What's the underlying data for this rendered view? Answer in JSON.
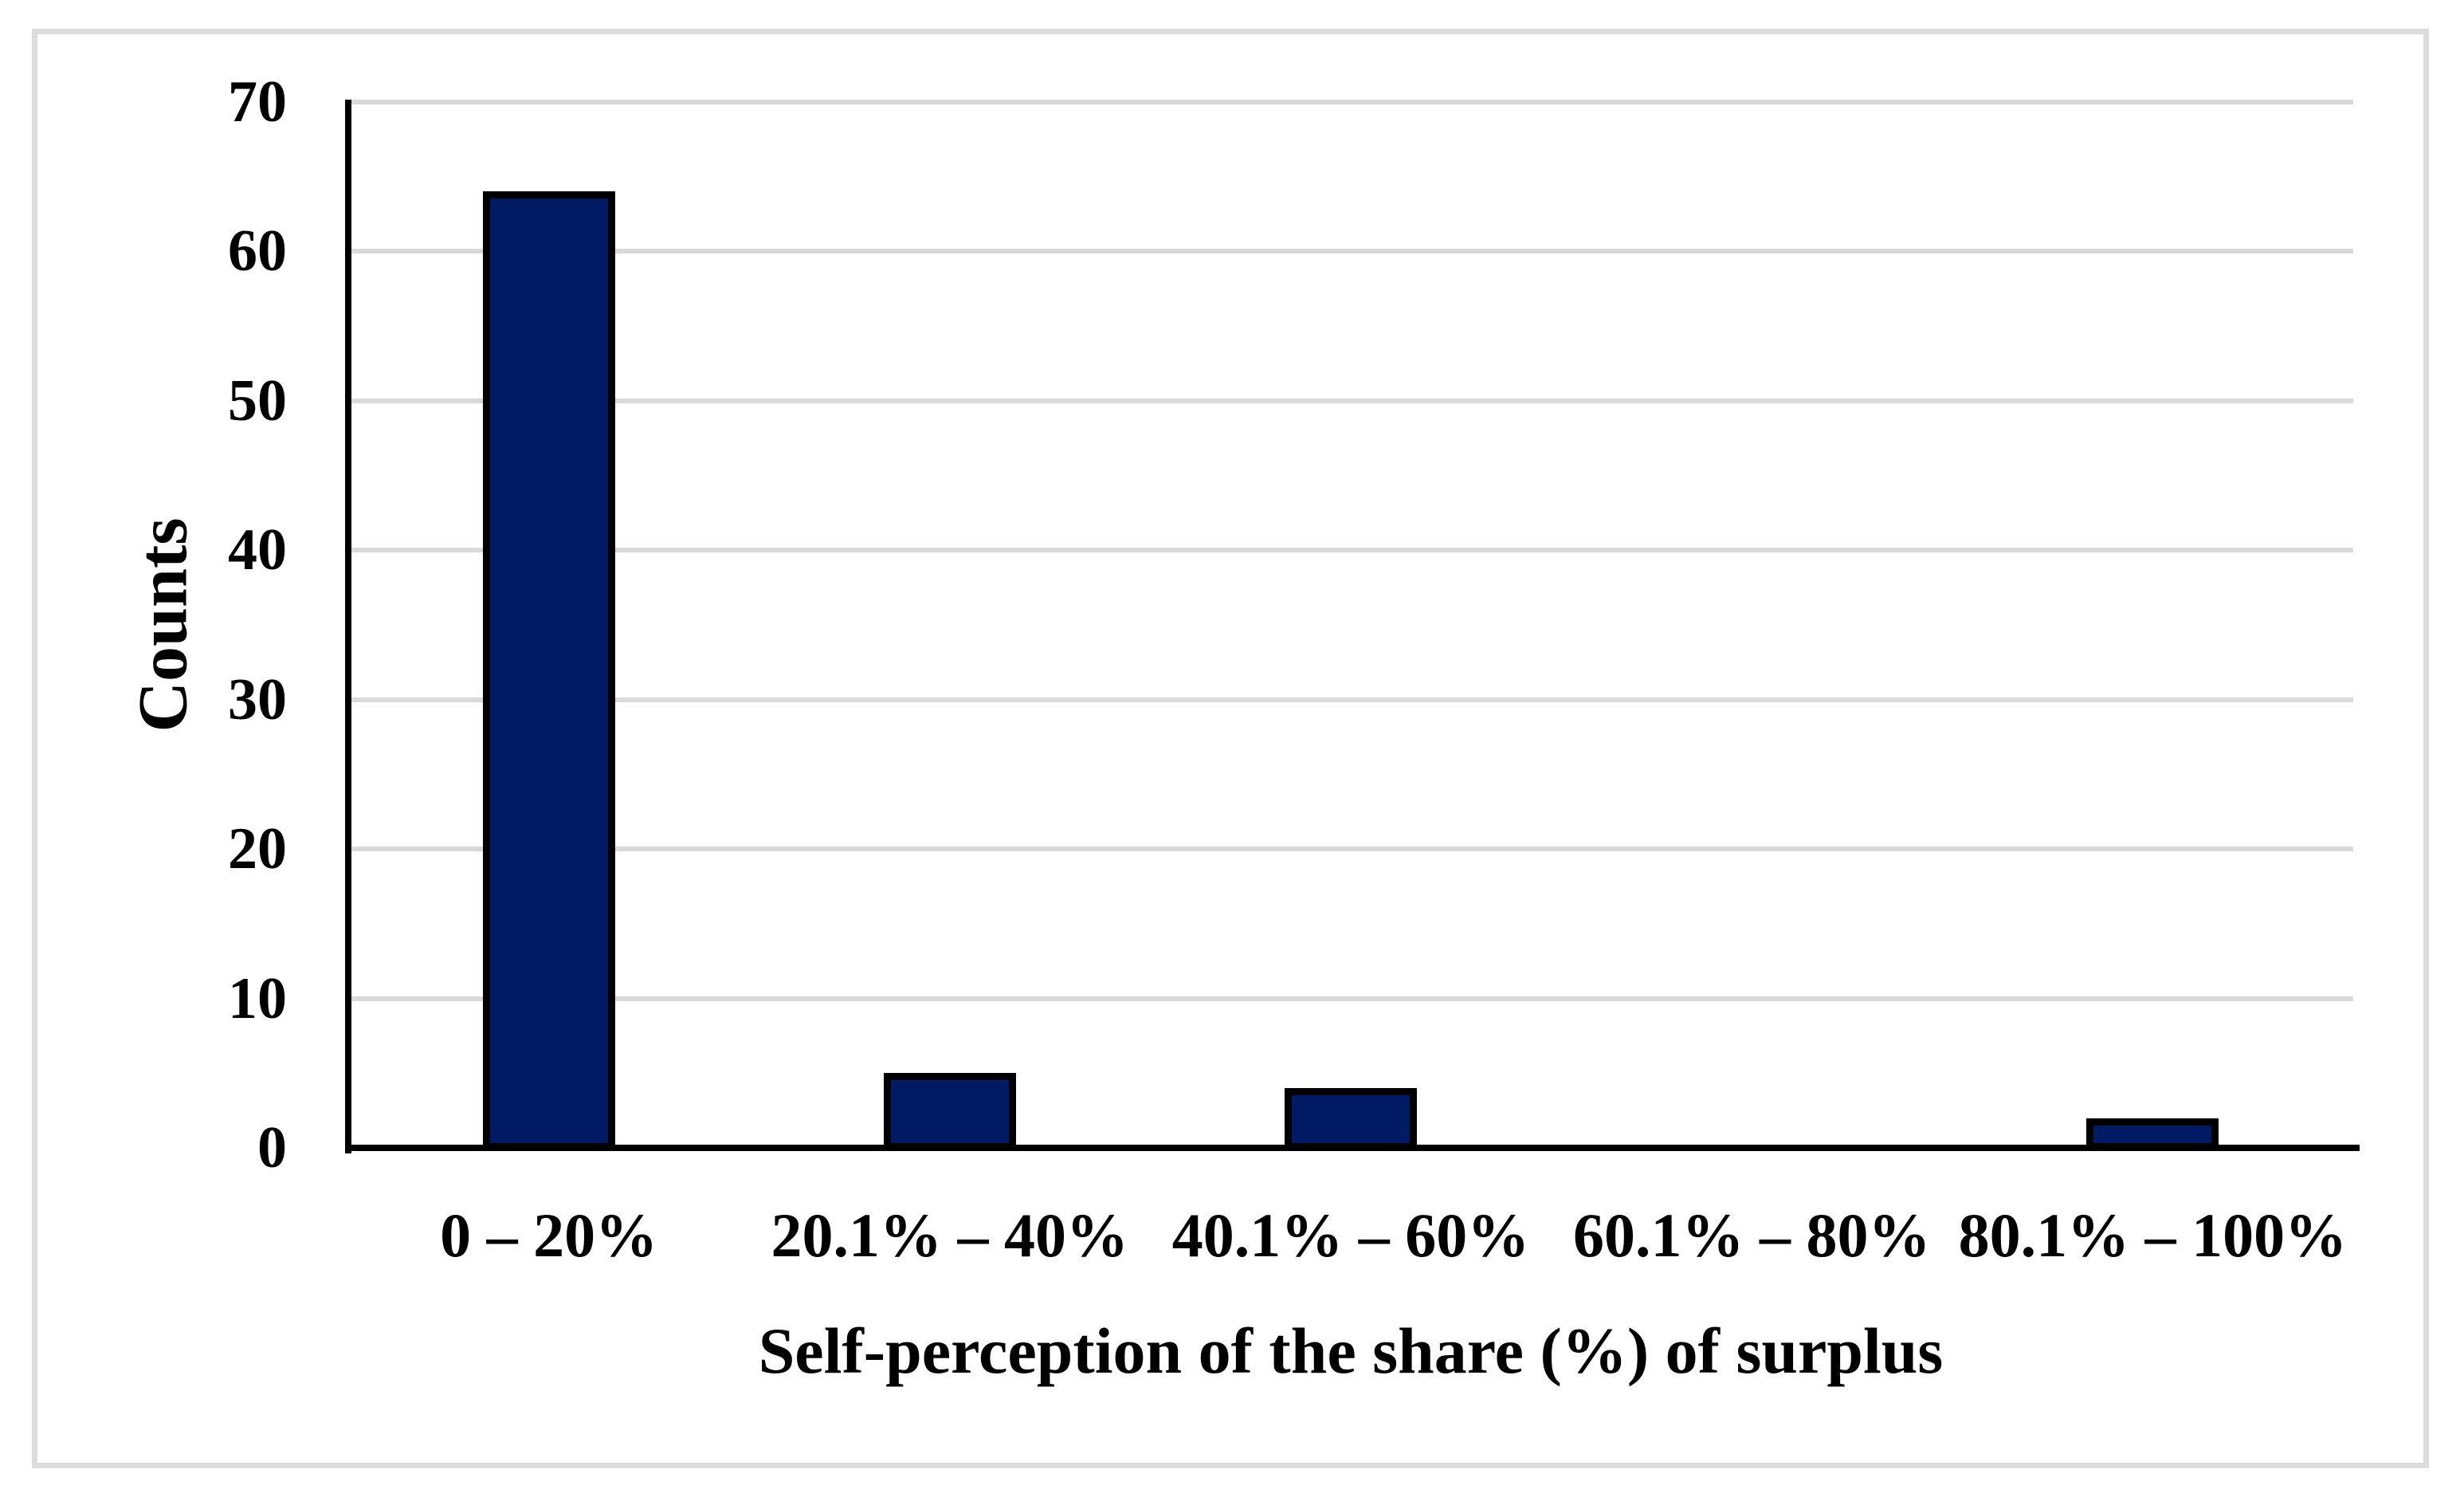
{
  "figure": {
    "background_color": "#FFFFFF",
    "frame_border_color": "#DCDCDC"
  },
  "chart_data": {
    "type": "bar",
    "title": "",
    "categories": [
      "0 – 20%",
      "20.1% – 40%",
      "40.1% – 60%",
      "60.1% – 80%",
      "80.1% – 100%"
    ],
    "values": [
      64,
      5,
      4,
      0,
      2
    ],
    "xlabel": "Self-perception of the share (%) of surplus",
    "ylabel": "Counts",
    "ylim": [
      0,
      70
    ],
    "yticks": [
      0,
      10,
      20,
      30,
      40,
      50,
      60,
      70
    ],
    "grid": "horizontal",
    "legend_position": "none",
    "bar_fill_color": "#001B63",
    "bar_border_color": "#000000",
    "gridline_color": "#D9D9D9",
    "axis_line_color": "#000000",
    "text_color": "#000000"
  }
}
